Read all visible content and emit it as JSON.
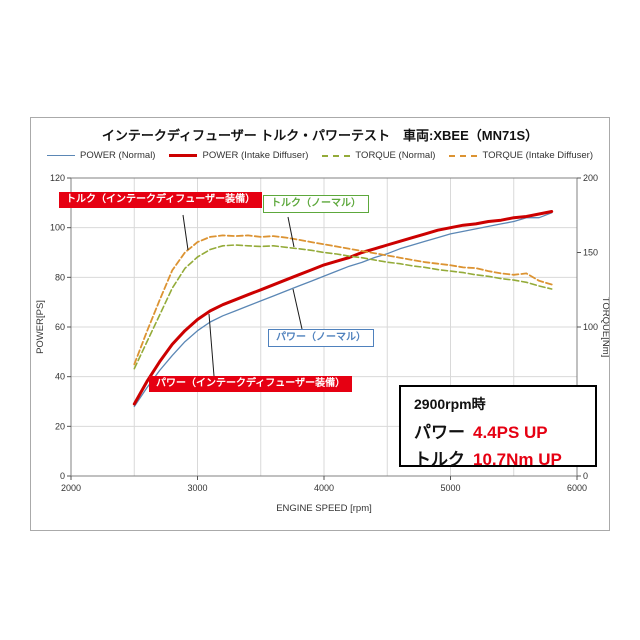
{
  "figure": {
    "title": "インテークディフューザー トルク・パワーテスト　車両:XBEE（MN71S）",
    "legend": [
      {
        "label": "POWER (Normal)"
      },
      {
        "label": "POWER (Intake Diffuser)"
      },
      {
        "label": "TORQUE (Normal)"
      },
      {
        "label": "TORQUE (Intake Diffuser)"
      }
    ]
  },
  "chart_data": {
    "type": "line",
    "title": "インテークディフューザー トルク・パワーテスト　車両:XBEE（MN71S）",
    "xlabel": "ENGINE SPEED [rpm]",
    "ylabel_left": "POWER[PS]",
    "ylabel_right": "TORQUE[Nm]",
    "x_range": [
      2000,
      6000
    ],
    "x_ticks": [
      2000,
      3000,
      4000,
      5000,
      6000
    ],
    "x_grid_step": 500,
    "y_left_range": [
      0,
      120
    ],
    "y_left_ticks": [
      0,
      20,
      40,
      60,
      80,
      100,
      120
    ],
    "y_right_range": [
      0,
      200
    ],
    "y_right_ticks": [
      0,
      50,
      100,
      150,
      200
    ],
    "grid": true,
    "legend_position": "top",
    "series": [
      {
        "id": "power-normal",
        "name": "POWER (Normal)",
        "axis": "left",
        "color": "#5b87b5",
        "width": 1.3,
        "dash": null,
        "x_start": 2500,
        "x_step": 100,
        "values": [
          28,
          35.5,
          42.5,
          48.5,
          54.1,
          58.5,
          62,
          64.5,
          66.5,
          68.5,
          70.5,
          72.5,
          74.5,
          76.5,
          78.5,
          80.5,
          82.5,
          84.5,
          86,
          88,
          89.5,
          91.5,
          93,
          94.5,
          96,
          97.5,
          98.5,
          99.5,
          100.5,
          101.5,
          102.5,
          104,
          104,
          106
        ]
      },
      {
        "id": "power-diffuser",
        "name": "POWER (Intake Diffuser)",
        "axis": "left",
        "color": "#cc0000",
        "width": 3,
        "dash": null,
        "x_start": 2500,
        "x_step": 100,
        "values": [
          29,
          38,
          46,
          53,
          58.5,
          63,
          66.5,
          69,
          71,
          73,
          75,
          77,
          79,
          81,
          83,
          85,
          86.5,
          88,
          90,
          91.5,
          93,
          94.5,
          96,
          97.5,
          99,
          100,
          101,
          101.5,
          102.5,
          103,
          104,
          104.5,
          105.5,
          106.5
        ]
      },
      {
        "id": "torque-normal",
        "name": "TORQUE (Normal)",
        "axis": "right",
        "color": "#94ab39",
        "width": 1.6,
        "dash": "6,3",
        "x_start": 2500,
        "x_step": 100,
        "values": [
          72,
          90,
          108,
          126,
          139.3,
          147,
          152,
          154.5,
          155,
          154.5,
          154,
          154.5,
          153.5,
          152.5,
          151.5,
          150,
          149,
          147.5,
          146.5,
          145,
          143.5,
          142.5,
          141,
          140,
          138.5,
          137.5,
          136.5,
          135,
          134,
          132.5,
          131.5,
          130,
          127.5,
          125.5
        ]
      },
      {
        "id": "torque-diffuser",
        "name": "TORQUE (Intake Diffuser)",
        "axis": "right",
        "color": "#dc9332",
        "width": 1.8,
        "dash": "6,3",
        "x_start": 2500,
        "x_step": 100,
        "values": [
          75,
          97,
          118,
          138,
          150,
          157,
          160.5,
          161.5,
          161,
          161.5,
          160.5,
          161,
          160,
          158.5,
          157,
          155.5,
          154,
          152.5,
          151,
          149.5,
          148,
          146.5,
          145,
          143.5,
          142.5,
          141.5,
          140,
          139.5,
          137.5,
          136,
          135,
          136,
          131,
          128.5
        ]
      }
    ],
    "annotations_note": "at 2900rpm: power +4.4PS, torque +10.7Nm with intake diffuser"
  },
  "annotations": {
    "torque_id": {
      "text": "トルク（インテークディフューザー装備）"
    },
    "torque_normal": {
      "text": "トルク（ノーマル）"
    },
    "power_normal": {
      "text": "パワー（ノーマル）"
    },
    "power_id": {
      "text": "パワー（インテークディフューザー装備）"
    }
  },
  "info_box": {
    "heading": "2900rpm時",
    "power_label": "パワー",
    "power_value": "4.4PS UP",
    "torque_label": "トルク",
    "torque_value": "10.7Nm UP"
  },
  "colors": {
    "power_normal": "#5b87b5",
    "power_diffuser": "#cc0000",
    "torque_normal": "#94ab39",
    "torque_diffuser": "#dc9332",
    "highlight_red": "#e60012"
  }
}
